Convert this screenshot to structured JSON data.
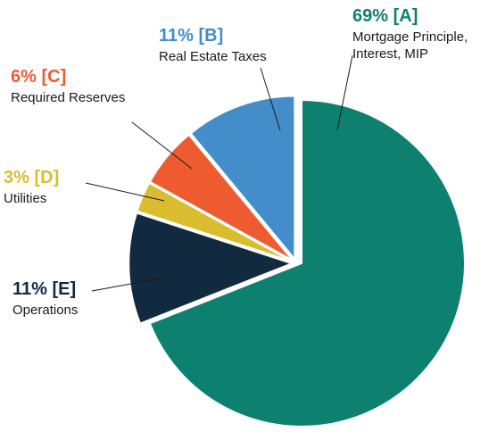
{
  "chart_data": {
    "type": "pie",
    "slices": [
      {
        "key": "A",
        "percent_label": "69% [A]",
        "label_lines": [
          "Mortgage Principle,",
          "Interest, MIP"
        ],
        "value": 69,
        "color": "#0e8070"
      },
      {
        "key": "E",
        "percent_label": "11% [E]",
        "label_lines": [
          "Operations"
        ],
        "value": 11,
        "color": "#122a40"
      },
      {
        "key": "D",
        "percent_label": "3% [D]",
        "label_lines": [
          "Utilities"
        ],
        "value": 3,
        "color": "#d9bd2e"
      },
      {
        "key": "C",
        "percent_label": "6% [C]",
        "label_lines": [
          "Required Reserves"
        ],
        "value": 6,
        "color": "#ee5b30"
      },
      {
        "key": "B",
        "percent_label": "11% [B]",
        "label_lines": [
          "Real Estate Taxes"
        ],
        "value": 11,
        "color": "#438dcb"
      }
    ]
  }
}
